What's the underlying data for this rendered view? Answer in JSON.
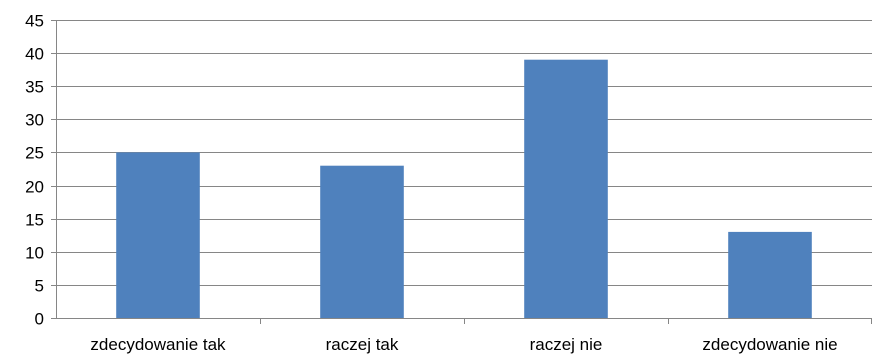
{
  "chart_data": {
    "type": "bar",
    "title": "",
    "xlabel": "",
    "ylabel": "",
    "categories": [
      "zdecydowanie tak",
      "raczej tak",
      "raczej nie",
      "zdecydowanie nie"
    ],
    "values": [
      25,
      23,
      39,
      13
    ],
    "ylim": [
      0,
      45
    ],
    "y_ticks": [
      "0",
      "5",
      "10",
      "15",
      "20",
      "25",
      "30",
      "35",
      "40",
      "45"
    ],
    "grid": true,
    "legend": "none",
    "colors": {
      "bar": "#4F81BD",
      "grid": "#868686",
      "axis": "#868686"
    }
  }
}
